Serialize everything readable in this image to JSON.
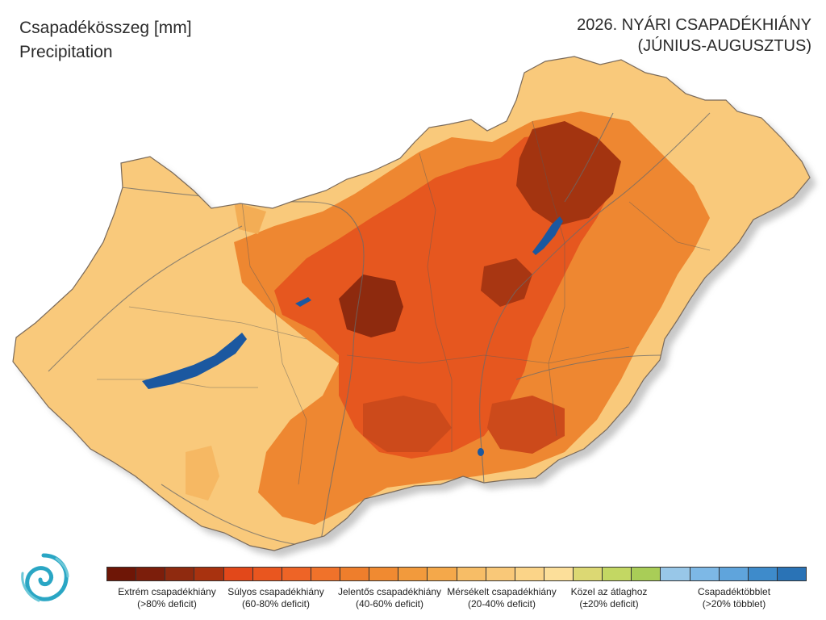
{
  "header": {
    "left_line1": "Csapadékösszeg [mm]",
    "left_line2": "Precipitation",
    "right_line1": "2026. NYÁRI CSAPADÉKHIÁNY",
    "right_line2": "(JÚNIUS-AUGUSZTUS)"
  },
  "colors": {
    "extreme": "#7a1c08",
    "severe": "#e3541c",
    "significant": "#ea8a2e",
    "moderate": "#f9c97b",
    "near_normal": "#b8d65e",
    "surplus": "#3f86c8",
    "lake": "#1b58a0",
    "border": "#7a6a5a"
  },
  "legend": {
    "swatches": [
      "#6e1606",
      "#7c1e0b",
      "#8f2a0f",
      "#a8320f",
      "#e2481a",
      "#e9561f",
      "#ee6426",
      "#f0722a",
      "#ee7e2c",
      "#f08a31",
      "#f29a3c",
      "#f4a84a",
      "#f7bd66",
      "#f9c878",
      "#fbd488",
      "#fcdf9a",
      "#dcd873",
      "#c3d763",
      "#a9cd57",
      "#98c7e8",
      "#7db8e6",
      "#5fa4dc",
      "#3e8bcb",
      "#2a73b6"
    ],
    "labels": [
      {
        "line1": "Extrém csapadékhiány",
        "line2": "(>80% deficit)"
      },
      {
        "line1": "Súlyos csapadékhiány",
        "line2": "(60-80% deficit)"
      },
      {
        "line1": "Jelentős csapadékhiány",
        "line2": "(40-60% deficit)"
      },
      {
        "line1": "Mérsékelt csapadékhiány",
        "line2": "(20-40% deficit)"
      },
      {
        "line1": "Közel az átlaghoz",
        "line2": "(±20% deficit)"
      },
      {
        "line1": "Csapadéktöbblet",
        "line2": "(>20% többlet)"
      }
    ]
  },
  "logo": {
    "icon": "swirl-logo-icon"
  }
}
